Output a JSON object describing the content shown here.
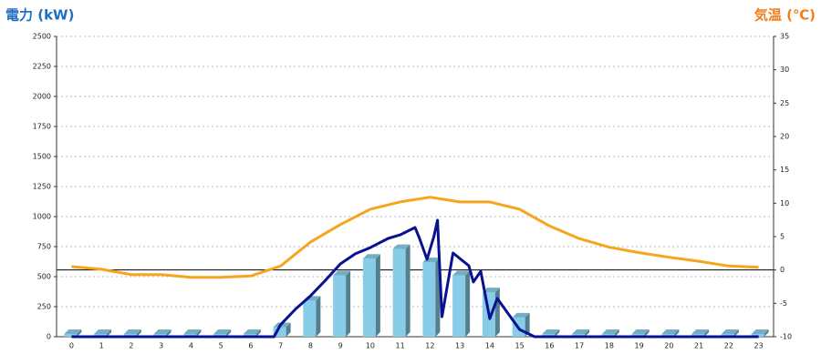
{
  "chart_data": {
    "type": "bar",
    "y_label": "電力 (kW)",
    "y_label_color": "#1f6fc0",
    "y2_label": "気温 (℃)",
    "y2_label_color": "#f07d1a",
    "categories": [
      "0",
      "1",
      "2",
      "3",
      "4",
      "5",
      "6",
      "7",
      "8",
      "9",
      "10",
      "11",
      "12",
      "13",
      "14",
      "15",
      "16",
      "17",
      "18",
      "19",
      "20",
      "21",
      "22",
      "23"
    ],
    "ylim": [
      0,
      2500
    ],
    "yticks": [
      0,
      250,
      500,
      750,
      1000,
      1250,
      1500,
      1750,
      2000,
      2250,
      2500
    ],
    "y2lim": [
      -10,
      35
    ],
    "y2ticks": [
      -10,
      -5,
      0,
      5,
      10,
      15,
      20,
      25,
      30,
      35
    ],
    "grid": true,
    "series": [
      {
        "type": "bar",
        "color": "#87cde8",
        "values": [
          0,
          0,
          0,
          0,
          0,
          0,
          0,
          80,
          300,
          510,
          650,
          730,
          620,
          510,
          370,
          160,
          0,
          0,
          0,
          0,
          0,
          0,
          0,
          0
        ]
      },
      {
        "type": "line",
        "color": "#0a1190",
        "x": [
          0,
          6.78,
          7.0,
          7.5,
          8.0,
          8.5,
          9.0,
          9.5,
          10.0,
          10.6,
          11.0,
          11.5,
          11.65,
          11.9,
          12.13,
          12.25,
          12.4,
          12.77,
          13.3,
          13.45,
          13.7,
          14.0,
          14.25,
          15.0,
          15.5,
          23
        ],
        "values": [
          0,
          0,
          100,
          230,
          340,
          470,
          606,
          690,
          742,
          818,
          848,
          909,
          818,
          644,
          833,
          970,
          167,
          697,
          590,
          455,
          545,
          150,
          318,
          60,
          0,
          0
        ]
      },
      {
        "type": "line",
        "axis": "y2",
        "color": "#f5a51e",
        "values": [
          0.5,
          0.1,
          -0.7,
          -0.7,
          -1.1,
          -1.1,
          -0.9,
          0.6,
          4.2,
          6.8,
          9.1,
          10.2,
          10.9,
          10.2,
          10.2,
          9.1,
          6.6,
          4.7,
          3.4,
          2.6,
          1.9,
          1.3,
          0.6,
          0.4
        ]
      }
    ]
  }
}
